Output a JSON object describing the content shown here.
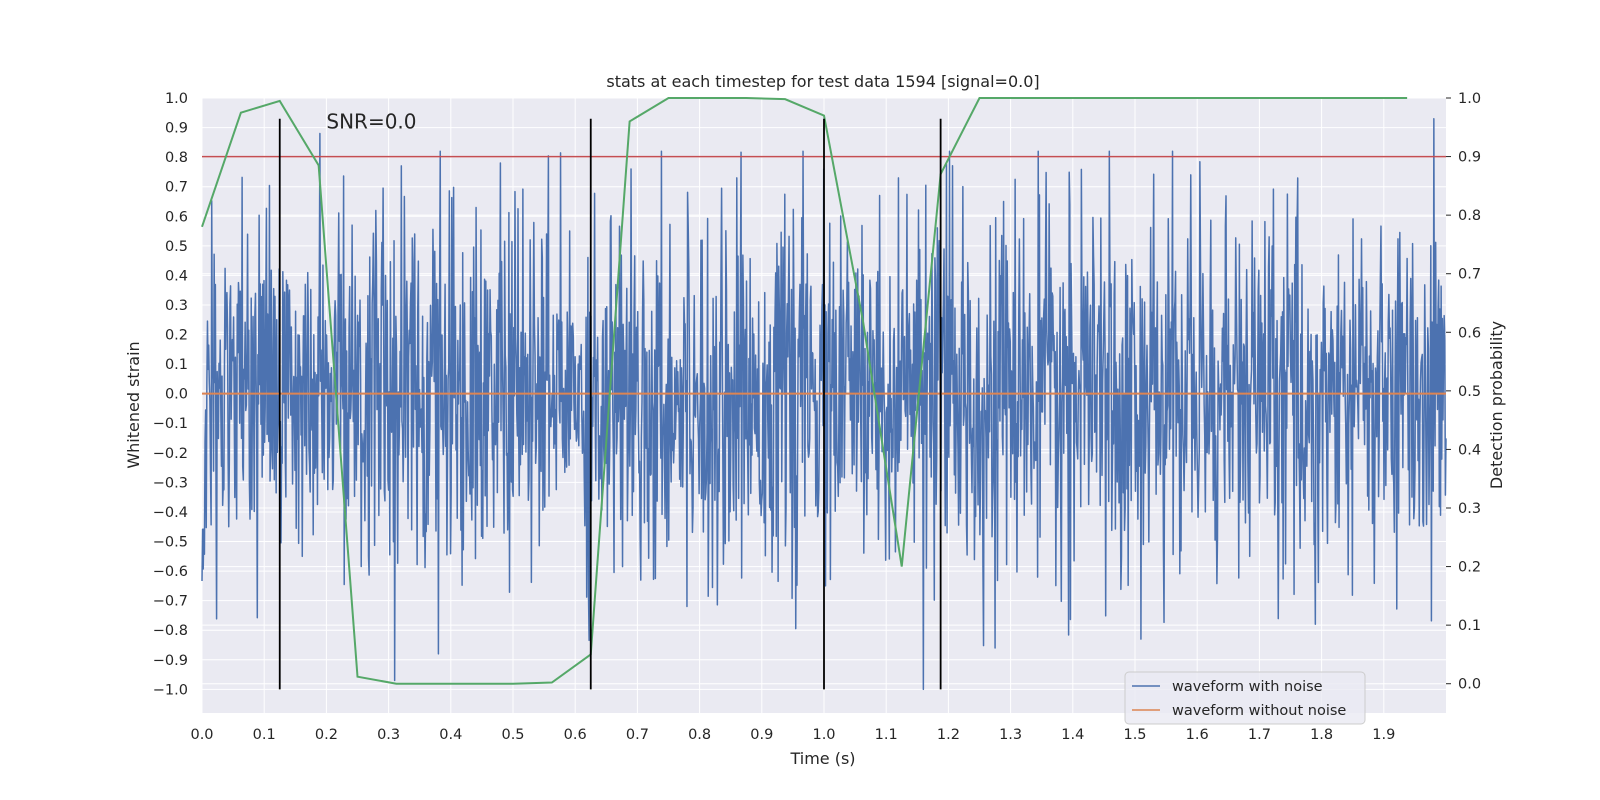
{
  "chart_data": {
    "type": "line",
    "title": "stats at each timestep for test data 1594 [signal=0.0]",
    "xlabel": "Time (s)",
    "ylabel": "Whitened strain",
    "y2label": "Detection probability",
    "xlim": [
      0.0,
      2.0
    ],
    "ylim": [
      -1.08,
      1.0
    ],
    "y2lim": [
      -0.05,
      1.0
    ],
    "grid": true,
    "x_ticks": [
      0.0,
      0.1,
      0.2,
      0.3,
      0.4,
      0.5,
      0.6,
      0.7,
      0.8,
      0.9,
      1.0,
      1.1,
      1.2,
      1.3,
      1.4,
      1.5,
      1.6,
      1.7,
      1.8,
      1.9
    ],
    "x_tick_labels": [
      "0.0",
      "0.1",
      "0.2",
      "0.3",
      "0.4",
      "0.5",
      "0.6",
      "0.7",
      "0.8",
      "0.9",
      "1.0",
      "1.1",
      "1.2",
      "1.3",
      "1.4",
      "1.5",
      "1.6",
      "1.7",
      "1.8",
      "1.9"
    ],
    "y_ticks": [
      1.0,
      0.9,
      0.8,
      0.7,
      0.6,
      0.5,
      0.4,
      0.3,
      0.2,
      0.1,
      0.0,
      -0.1,
      -0.2,
      -0.3,
      -0.4,
      -0.5,
      -0.6,
      -0.7,
      -0.8,
      -0.9,
      -1.0
    ],
    "y_tick_labels": [
      "1.0",
      "0.9",
      "0.8",
      "0.7",
      "0.6",
      "0.5",
      "0.4",
      "0.3",
      "0.2",
      "0.1",
      "0.0",
      "−0.1",
      "−0.2",
      "−0.3",
      "−0.4",
      "−0.5",
      "−0.6",
      "−0.7",
      "−0.8",
      "−0.9",
      "−1.0"
    ],
    "y2_ticks": [
      0.0,
      0.1,
      0.2,
      0.3,
      0.4,
      0.5,
      0.6,
      0.7,
      0.8,
      0.9,
      1.0
    ],
    "y2_tick_labels": [
      "0.0",
      "0.1",
      "0.2",
      "0.3",
      "0.4",
      "0.5",
      "0.6",
      "0.7",
      "0.8",
      "0.9",
      "1.0"
    ],
    "annotation": {
      "text": "SNR=0.0",
      "x": 0.2,
      "y": 0.92
    },
    "series": [
      {
        "name": "waveform with noise",
        "color": "#4c72b0",
        "x_range": [
          0.0,
          2.0
        ],
        "n_points": 2048,
        "spread": 0.3,
        "peaks": [
          [
            0.19,
            0.88
          ],
          [
            0.31,
            -0.97
          ],
          [
            0.38,
            -0.88
          ],
          [
            0.48,
            0.78
          ],
          [
            0.69,
            0.76
          ],
          [
            0.78,
            -0.72
          ],
          [
            1.12,
            0.73
          ],
          [
            1.16,
            -1.0
          ],
          [
            1.51,
            -0.83
          ],
          [
            1.59,
            0.74
          ],
          [
            1.79,
            -0.78
          ],
          [
            1.98,
            0.93
          ]
        ]
      },
      {
        "name": "waveform without noise",
        "color": "#dd8452",
        "x": [
          0.0,
          2.0
        ],
        "y": [
          0.0,
          0.0
        ]
      },
      {
        "name": "detection probability",
        "axis": "right",
        "color": "#55a868",
        "x": [
          0.0,
          0.0625,
          0.125,
          0.1875,
          0.25,
          0.3125,
          0.375,
          0.4375,
          0.5,
          0.5625,
          0.625,
          0.6875,
          0.75,
          0.8125,
          0.875,
          0.9375,
          1.0,
          1.0625,
          1.125,
          1.1875,
          1.25,
          1.3125,
          1.375,
          1.4375,
          1.5,
          1.5625,
          1.625,
          1.6875,
          1.75,
          1.8125,
          1.875,
          1.9375
        ],
        "y": [
          0.78,
          0.975,
          0.995,
          0.885,
          0.012,
          0.0,
          0.0,
          0.0,
          0.0,
          0.002,
          0.05,
          0.96,
          1.0,
          1.0,
          1.0,
          0.998,
          0.97,
          0.62,
          0.2,
          0.87,
          1.0,
          1.0,
          1.0,
          1.0,
          1.0,
          1.0,
          1.0,
          1.0,
          1.0,
          1.0,
          1.0,
          1.0
        ]
      }
    ],
    "threshold_line": {
      "y2": 0.9,
      "color": "#c44e52"
    },
    "vertical_markers": [
      0.125,
      0.625,
      1.0,
      1.1875
    ],
    "vertical_marker_range": [
      -1.0,
      0.93
    ],
    "legend": {
      "placement": "lower-right",
      "entries": [
        {
          "label": "waveform with noise",
          "color": "#4c72b0"
        },
        {
          "label": "waveform without noise",
          "color": "#dd8452"
        }
      ]
    }
  }
}
